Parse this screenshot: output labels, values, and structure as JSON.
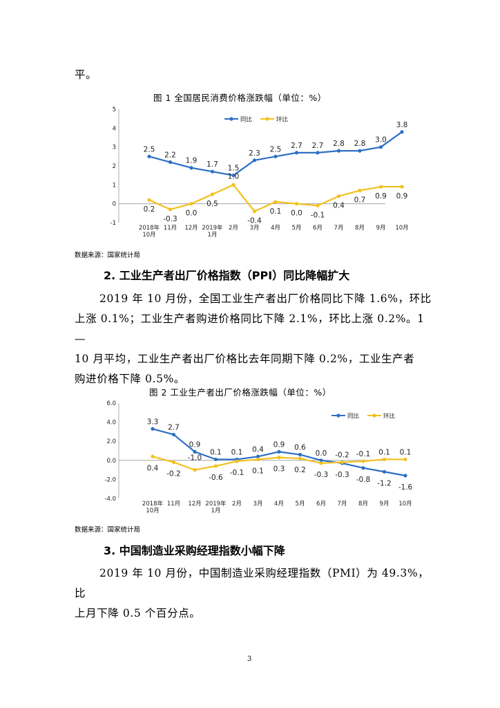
{
  "page": {
    "top_fragment": "平。",
    "fig1": {
      "title": "图 1   全国居民消费价格涨跌幅（单位：%）",
      "source": "数据来源：国家统计局"
    },
    "section2": {
      "heading": "2.  工业生产者出厂价格指数（PPI）同比降幅扩大",
      "para": [
        "2019 年 10 月份，全国工业生产者出厂价格同比下降 1.6%，环比",
        "上涨 0.1%；工业生产者购进价格同比下降 2.1%，环比上涨 0.2%。1—",
        "10 月平均，工业生产者出厂价格比去年同期下降 0.2%，工业生产者",
        "购进价格下降 0.5%。"
      ]
    },
    "fig2": {
      "title": "图 2   工业生产者出厂价格涨跌幅（单位：%）",
      "source": "数据来源：国家统计局"
    },
    "section3": {
      "heading": "3.  中国制造业采购经理指数小幅下降",
      "para": [
        "2019 年 10 月份，中国制造业采购经理指数（PMI）为 49.3%，比",
        "上月下降 0.5 个百分点。"
      ]
    },
    "page_number": "3"
  },
  "chart_data": [
    {
      "type": "line",
      "categories": [
        "2018年\n10月",
        "11月",
        "12月",
        "2019年\n1月",
        "2月",
        "3月",
        "4月",
        "5月",
        "6月",
        "7月",
        "8月",
        "9月",
        "10月"
      ],
      "series": [
        {
          "name": "同比",
          "color": "#2e6fc4",
          "values": [
            2.5,
            2.2,
            1.9,
            1.7,
            1.5,
            2.3,
            2.5,
            2.7,
            2.7,
            2.8,
            2.8,
            3.0,
            3.8
          ]
        },
        {
          "name": "环比",
          "color": "#f2c11c",
          "values": [
            0.2,
            -0.3,
            0.0,
            0.5,
            1.0,
            -0.4,
            0.1,
            0.0,
            -0.1,
            0.4,
            0.7,
            0.9,
            0.9
          ]
        }
      ],
      "yticks": [
        "5",
        "4",
        "3",
        "2",
        "1",
        "0",
        "-1"
      ],
      "ylim": [
        -1,
        5
      ],
      "legend": "top-right",
      "grid": false
    },
    {
      "type": "line",
      "categories": [
        "2018年\n10月",
        "11月",
        "12月",
        "2019年\n1月",
        "2月",
        "3月",
        "4月",
        "5月",
        "6月",
        "7月",
        "8月",
        "9月",
        "10月"
      ],
      "series": [
        {
          "name": "同比",
          "color": "#2e6fc4",
          "values": [
            3.3,
            2.7,
            0.9,
            0.1,
            0.1,
            0.4,
            0.9,
            0.6,
            0.0,
            -0.3,
            -0.8,
            -1.2,
            -1.6
          ]
        },
        {
          "name": "环比",
          "color": "#f2c11c",
          "values": [
            0.4,
            -0.2,
            -1.0,
            -0.6,
            -0.1,
            0.1,
            0.3,
            0.2,
            -0.3,
            -0.2,
            -0.1,
            0.1,
            0.1
          ]
        }
      ],
      "yticks": [
        "6.0",
        "4.0",
        "2.0",
        "0.0",
        "-2.0",
        "-4.0"
      ],
      "ylim": [
        -4,
        6
      ],
      "legend": "top-right",
      "grid": false
    }
  ]
}
